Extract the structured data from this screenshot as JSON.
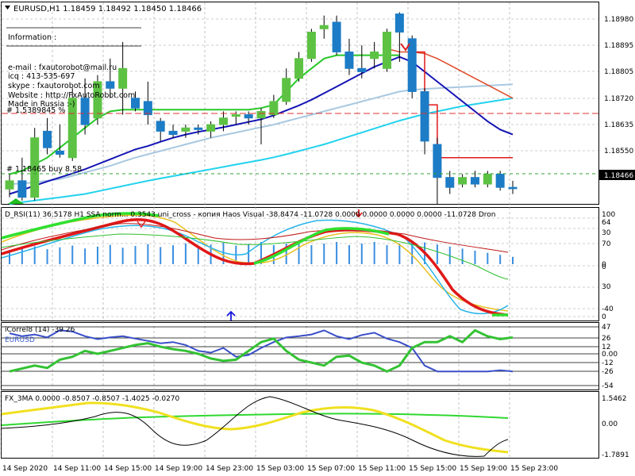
{
  "header": {
    "symbol_line": "EURUSD,H1  1.18459 1.18492 1.18450 1.18466",
    "info_lines": [
      "Information :",
      "e-mail : fxautorobot@mail.ru",
      "icq : 413-535-697",
      "skype : fxautorobot.com",
      "Website : http://FxAutoRobot.com",
      "Made in Russia :-)",
      "# 1.5389845 %"
    ],
    "order_label": "#   1.18465 buy 8.58"
  },
  "price_axis": {
    "labels": [
      "1.18980",
      "1.18895",
      "1.18805",
      "1.18720",
      "1.18635",
      "1.18550"
    ],
    "current": "1.18466"
  },
  "time_axis": [
    "14 Sep 2020",
    "14 Sep 11:00",
    "14 Sep 15:00",
    "14 Sep 19:00",
    "14 Sep 23:00",
    "15 Sep 03:00",
    "15 Sep 07:00",
    "15 Sep 11:00",
    "15 Sep 15:00",
    "15 Sep 19:00",
    "15 Sep 23:00"
  ],
  "rsi_panel": {
    "label": "D_RSI(11) 36.5178  H1 SSA norm...   0.3543  uni_cross - копия  Haos Visual -38.8474 -11.0728 0.0000  0.0000 0.0000 0.0000 -11.0728  Dron",
    "axis": [
      "100",
      "64",
      "30",
      "70",
      "0",
      "0",
      "30",
      "-40",
      "0"
    ]
  },
  "corr_panel": {
    "label": "iCorrel8 (14)  -39 26",
    "sublabel": "EURUSD",
    "axis": [
      "47",
      "26",
      "12",
      "0.00",
      "-12",
      "-26",
      "-54"
    ]
  },
  "ma_panel": {
    "label": "FX_3MA  0.0000 -0.8507 -0.8507 -1.4025 -0.0270",
    "axis": [
      "1.5462",
      "0.00",
      "-1.7891"
    ]
  },
  "colors": {
    "bull": "#5dc244",
    "bear": "#1c7cc6",
    "blue_ma": "#1414b4",
    "cyan_ma": "#22d2ee",
    "green_ma": "#28c828",
    "red_ma": "#e04a2a",
    "marker": "#e02020"
  },
  "chart_data": {
    "type": "candlestick",
    "title": "EURUSD,H1",
    "candles": [
      {
        "o": 1.18465,
        "h": 1.1851,
        "l": 1.1844,
        "c": 1.1849
      },
      {
        "o": 1.1849,
        "h": 1.1856,
        "l": 1.1843,
        "c": 1.1844
      },
      {
        "o": 1.1844,
        "h": 1.1865,
        "l": 1.1843,
        "c": 1.1862
      },
      {
        "o": 1.1864,
        "h": 1.1868,
        "l": 1.1857,
        "c": 1.1859
      },
      {
        "o": 1.1858,
        "h": 1.1866,
        "l": 1.1856,
        "c": 1.1857
      },
      {
        "o": 1.1856,
        "h": 1.1877,
        "l": 1.1855,
        "c": 1.1874
      },
      {
        "o": 1.1874,
        "h": 1.188,
        "l": 1.1863,
        "c": 1.1866
      },
      {
        "o": 1.1868,
        "h": 1.1881,
        "l": 1.1866,
        "c": 1.1879
      },
      {
        "o": 1.1879,
        "h": 1.1886,
        "l": 1.1874,
        "c": 1.1877
      },
      {
        "o": 1.1877,
        "h": 1.1891,
        "l": 1.1869,
        "c": 1.1883
      },
      {
        "o": 1.1874,
        "h": 1.1876,
        "l": 1.187,
        "c": 1.1871
      },
      {
        "o": 1.1873,
        "h": 1.1879,
        "l": 1.1866,
        "c": 1.1869
      },
      {
        "o": 1.1867,
        "h": 1.1868,
        "l": 1.1861,
        "c": 1.1864
      },
      {
        "o": 1.1864,
        "h": 1.1866,
        "l": 1.1862,
        "c": 1.1863
      },
      {
        "o": 1.1864,
        "h": 1.1866,
        "l": 1.1862,
        "c": 1.1865
      },
      {
        "o": 1.1865,
        "h": 1.1866,
        "l": 1.1863,
        "c": 1.18645
      },
      {
        "o": 1.1864,
        "h": 1.1867,
        "l": 1.1862,
        "c": 1.1866
      },
      {
        "o": 1.1866,
        "h": 1.187,
        "l": 1.1864,
        "c": 1.1868
      },
      {
        "o": 1.18685,
        "h": 1.187,
        "l": 1.1866,
        "c": 1.1869
      },
      {
        "o": 1.1869,
        "h": 1.187,
        "l": 1.1866,
        "c": 1.1868
      },
      {
        "o": 1.1868,
        "h": 1.1871,
        "l": 1.186,
        "c": 1.187
      },
      {
        "o": 1.1869,
        "h": 1.1875,
        "l": 1.1868,
        "c": 1.1873
      },
      {
        "o": 1.1873,
        "h": 1.1883,
        "l": 1.1872,
        "c": 1.188
      },
      {
        "o": 1.188,
        "h": 1.1888,
        "l": 1.1879,
        "c": 1.1886
      },
      {
        "o": 1.1886,
        "h": 1.1895,
        "l": 1.1885,
        "c": 1.1894
      },
      {
        "o": 1.1895,
        "h": 1.1899,
        "l": 1.1892,
        "c": 1.1896
      },
      {
        "o": 1.1897,
        "h": 1.1899,
        "l": 1.1887,
        "c": 1.1888
      },
      {
        "o": 1.1888,
        "h": 1.1892,
        "l": 1.1881,
        "c": 1.1883
      },
      {
        "o": 1.1883,
        "h": 1.189,
        "l": 1.188,
        "c": 1.1882
      },
      {
        "o": 1.1886,
        "h": 1.1891,
        "l": 1.1883,
        "c": 1.1888
      },
      {
        "o": 1.1883,
        "h": 1.1895,
        "l": 1.1882,
        "c": 1.1894
      },
      {
        "o": 1.18995,
        "h": 1.19,
        "l": 1.1885,
        "c": 1.1894
      },
      {
        "o": 1.1892,
        "h": 1.1893,
        "l": 1.1874,
        "c": 1.1876
      },
      {
        "o": 1.1876,
        "h": 1.1877,
        "l": 1.1857,
        "c": 1.1861
      },
      {
        "o": 1.186,
        "h": 1.1862,
        "l": 1.1842,
        "c": 1.185
      },
      {
        "o": 1.185,
        "h": 1.1852,
        "l": 1.1845,
        "c": 1.1847
      },
      {
        "o": 1.1848,
        "h": 1.1851,
        "l": 1.1847,
        "c": 1.185
      },
      {
        "o": 1.185,
        "h": 1.1852,
        "l": 1.1847,
        "c": 1.1848
      },
      {
        "o": 1.1848,
        "h": 1.1852,
        "l": 1.1847,
        "c": 1.1851
      },
      {
        "o": 1.1851,
        "h": 1.1852,
        "l": 1.1846,
        "c": 1.1847
      },
      {
        "o": 1.1847,
        "h": 1.1849,
        "l": 1.1845,
        "c": 1.18466
      }
    ],
    "ma_blue": [
      1.1845,
      1.18462,
      1.18475,
      1.18488,
      1.185,
      1.18512,
      1.18525,
      1.1854,
      1.18555,
      1.1857,
      1.18585,
      1.18595,
      1.18608,
      1.1862,
      1.1863,
      1.18638,
      1.18645,
      1.18652,
      1.1866,
      1.18668,
      1.18676,
      1.18688,
      1.18703,
      1.18718,
      1.18735,
      1.18755,
      1.18775,
      1.18795,
      1.18815,
      1.18835,
      1.1885,
      1.18865,
      1.1885,
      1.1882,
      1.1879,
      1.1876,
      1.1873,
      1.187,
      1.1867,
      1.18645,
      1.1863
    ],
    "ma_light": [
      1.1848,
      1.18482,
      1.18485,
      1.1849,
      1.18495,
      1.18505,
      1.18515,
      1.18525,
      1.18535,
      1.18548,
      1.1856,
      1.1857,
      1.1858,
      1.1859,
      1.186,
      1.1861,
      1.1862,
      1.18628,
      1.18636,
      1.18644,
      1.18652,
      1.1866,
      1.1867,
      1.1868,
      1.1869,
      1.187,
      1.1871,
      1.1872,
      1.1873,
      1.1874,
      1.1875,
      1.1876,
      1.18765,
      1.18768,
      1.1877,
      1.18772,
      1.18774,
      1.18776,
      1.18778,
      1.1878,
      1.18782
    ],
    "ma_cyan": [
      1.1842,
      1.18425,
      1.1843,
      1.18435,
      1.1844,
      1.18445,
      1.1845,
      1.18458,
      1.18466,
      1.18474,
      1.18482,
      1.1849,
      1.18497,
      1.18504,
      1.18511,
      1.18518,
      1.18525,
      1.18532,
      1.18539,
      1.18546,
      1.18553,
      1.18561,
      1.1857,
      1.1858,
      1.1859,
      1.186,
      1.18612,
      1.18624,
      1.18636,
      1.18648,
      1.1866,
      1.18672,
      1.18682,
      1.18692,
      1.187,
      1.18708,
      1.18716,
      1.18722,
      1.18728,
      1.18734,
      1.1874
    ],
    "ma_green": [
      1.1851,
      1.1852,
      1.1854,
      1.1856,
      1.1859,
      1.1862,
      1.1865,
      1.1868,
      1.187,
      1.18705,
      1.18705,
      1.18705,
      1.18705,
      1.18705,
      1.18705,
      1.18705,
      1.18705,
      1.18705,
      1.18705,
      1.18705,
      1.1871,
      1.1872,
      1.1876,
      1.188,
      1.1883,
      1.1886,
      1.1887,
      1.1887,
      1.1887,
      1.1887,
      1.1887,
      1.1887,
      null,
      null,
      null,
      null,
      null,
      null,
      null,
      null,
      null
    ],
    "ma_red": [
      null,
      null,
      null,
      null,
      null,
      null,
      null,
      null,
      null,
      null,
      null,
      null,
      null,
      null,
      null,
      null,
      null,
      null,
      null,
      null,
      null,
      null,
      null,
      null,
      null,
      null,
      null,
      null,
      null,
      null,
      1.1889,
      1.1888,
      1.1888,
      1.18875,
      1.1886,
      1.1884,
      1.1882,
      1.188,
      1.1878,
      1.1876,
      1.1874
    ],
    "stop_red": [
      null,
      null,
      null,
      null,
      null,
      null,
      null,
      null,
      null,
      null,
      null,
      null,
      null,
      null,
      null,
      null,
      null,
      null,
      null,
      null,
      null,
      null,
      null,
      null,
      null,
      null,
      null,
      null,
      null,
      null,
      null,
      null,
      1.1888,
      1.1872,
      1.1856,
      1.1856,
      1.1856,
      1.1856,
      1.1856,
      1.1856,
      1.1856
    ],
    "price_range": [
      1.1842,
      1.1903
    ],
    "corr_series_blue": [
      35,
      30,
      33,
      28,
      40,
      38,
      30,
      25,
      28,
      30,
      26,
      22,
      18,
      20,
      15,
      5,
      2,
      10,
      -5,
      -2,
      10,
      20,
      28,
      30,
      33,
      40,
      30,
      25,
      32,
      36,
      26,
      20,
      10,
      -20,
      -30,
      -30,
      -30,
      -30,
      -30,
      -28,
      -30
    ],
    "corr_series_green": [
      -30,
      -25,
      -20,
      -24,
      -10,
      -5,
      5,
      0,
      5,
      10,
      15,
      18,
      12,
      8,
      5,
      0,
      -8,
      -12,
      -10,
      5,
      20,
      26,
      5,
      -10,
      -15,
      -20,
      -5,
      -3,
      -15,
      -20,
      -30,
      -20,
      10,
      20,
      20,
      30,
      20,
      40,
      30,
      25,
      28
    ]
  }
}
